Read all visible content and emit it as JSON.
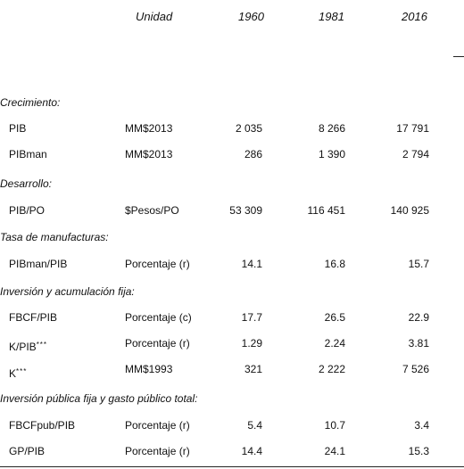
{
  "header": {
    "unidad": "Unidad",
    "years": [
      "1960",
      "1981",
      "2016"
    ]
  },
  "sections": [
    {
      "title": "Crecimiento:"
    },
    {
      "title": "Desarrollo:"
    },
    {
      "title": "Tasa de manufacturas:"
    },
    {
      "title": "Inversión y acumulación fija:"
    },
    {
      "title": "Inversión pública fija y gasto público total:"
    }
  ],
  "rows": [
    {
      "label": "PIB",
      "unit": "MM$2013",
      "v1960": "2 035",
      "v1981": "8 266",
      "v2016": "17 791"
    },
    {
      "label": "PIBman",
      "unit": "MM$2013",
      "v1960": "286",
      "v1981": "1 390",
      "v2016": "2 794"
    },
    {
      "label": "PIB/PO",
      "unit": "$Pesos/PO",
      "v1960": "53 309",
      "v1981": "116 451",
      "v2016": "140 925"
    },
    {
      "label": "PIBman/PIB",
      "unit": "Porcentaje (r)",
      "v1960": "14.1",
      "v1981": "16.8",
      "v2016": "15.7"
    },
    {
      "label": "FBCF/PIB",
      "unit": "Porcentaje (c)",
      "v1960": "17.7",
      "v1981": "26.5",
      "v2016": "22.9"
    },
    {
      "label": "K/PIB",
      "sup": "***",
      "unit": "Porcentaje (r)",
      "v1960": "1.29",
      "v1981": "2.24",
      "v2016": "3.81"
    },
    {
      "label": "K",
      "sup": "***",
      "unit": "MM$1993",
      "v1960": "321",
      "v1981": "2 222",
      "v2016": "7 526"
    },
    {
      "label": "FBCFpub/PIB",
      "unit": "Porcentaje (r)",
      "v1960": "5.4",
      "v1981": "10.7",
      "v2016": "3.4"
    },
    {
      "label": "GP/PIB",
      "unit": "Porcentaje (r)",
      "v1960": "14.4",
      "v1981": "24.1",
      "v2016": "15.3"
    }
  ]
}
